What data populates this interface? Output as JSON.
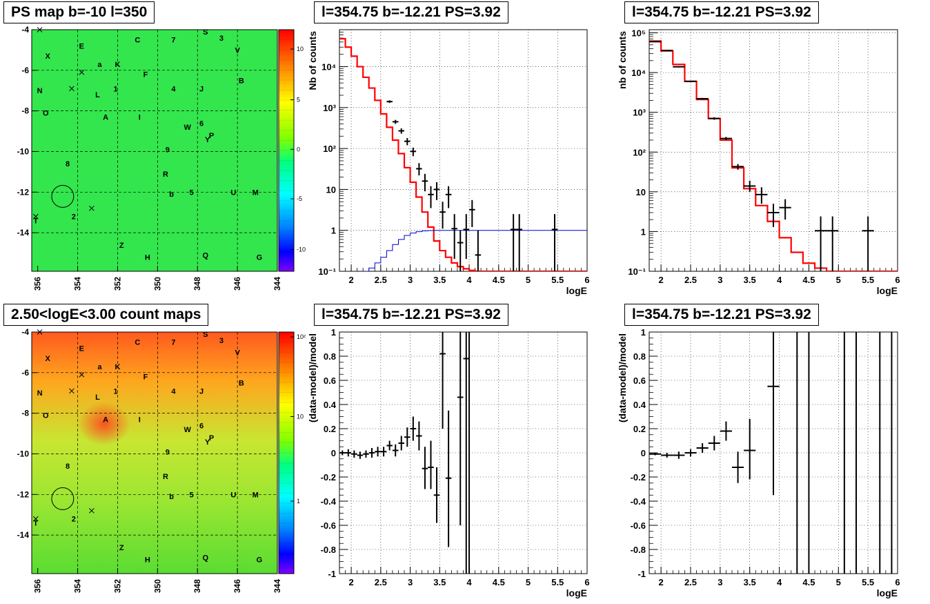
{
  "titles": {
    "map_top": "PS map b=-10 l=350",
    "map_bottom": "2.50<logE<3.00 count maps",
    "spec_left": "l=354.75 b=-12.21 PS=3.92",
    "spec_right": "l=354.75 b=-12.21 PS=3.92",
    "res_left": "l=354.75 b=-12.21 PS=3.92",
    "res_right": "l=354.75 b=-12.21 PS=3.92"
  },
  "colors": {
    "model_line": "#ff0000",
    "background_line": "#0000cc",
    "data_points": "#000000",
    "map_top_fill": "#33e64d",
    "map_bottom_gradient": [
      "#ff5a1e",
      "#ffa51e",
      "#c8e632",
      "#9be632",
      "#5adc32"
    ]
  },
  "source_labels": [
    {
      "text": "S",
      "l": 347.6,
      "b": -4.1
    },
    {
      "text": "3",
      "l": 346.8,
      "b": -4.4
    },
    {
      "text": "C",
      "l": 351.0,
      "b": -4.5
    },
    {
      "text": "7",
      "l": 349.2,
      "b": -4.5
    },
    {
      "text": "E",
      "l": 353.8,
      "b": -4.8
    },
    {
      "text": "V",
      "l": 346.0,
      "b": -5.0
    },
    {
      "text": "X",
      "l": 355.5,
      "b": -5.3
    },
    {
      "text": "a",
      "l": 352.9,
      "b": -5.7
    },
    {
      "text": "K",
      "l": 352.0,
      "b": -5.7
    },
    {
      "text": "F",
      "l": 350.6,
      "b": -6.2
    },
    {
      "text": "B",
      "l": 345.8,
      "b": -6.5
    },
    {
      "text": "N",
      "l": 355.9,
      "b": -7.0
    },
    {
      "text": "1",
      "l": 352.1,
      "b": -6.9
    },
    {
      "text": "4",
      "l": 349.2,
      "b": -6.9
    },
    {
      "text": "J",
      "l": 347.8,
      "b": -6.9
    },
    {
      "text": "L",
      "l": 353.0,
      "b": -7.2
    },
    {
      "text": "O",
      "l": 355.6,
      "b": -8.1
    },
    {
      "text": "A",
      "l": 352.6,
      "b": -8.3
    },
    {
      "text": "I",
      "l": 350.9,
      "b": -8.3
    },
    {
      "text": "6",
      "l": 347.8,
      "b": -8.6
    },
    {
      "text": "W",
      "l": 348.5,
      "b": -8.8
    },
    {
      "text": "P",
      "l": 347.3,
      "b": -9.2
    },
    {
      "text": "Y",
      "l": 347.5,
      "b": -9.4
    },
    {
      "text": "9",
      "l": 349.5,
      "b": -9.9
    },
    {
      "text": "8",
      "l": 354.5,
      "b": -10.6
    },
    {
      "text": "R",
      "l": 349.6,
      "b": -11.1
    },
    {
      "text": "5",
      "l": 348.3,
      "b": -12.0
    },
    {
      "text": "U",
      "l": 346.2,
      "b": -12.0
    },
    {
      "text": "M",
      "l": 345.1,
      "b": -12.0
    },
    {
      "text": "b",
      "l": 349.3,
      "b": -12.1
    },
    {
      "text": "2",
      "l": 354.2,
      "b": -13.2
    },
    {
      "text": "T",
      "l": 356.1,
      "b": -13.4
    },
    {
      "text": "Z",
      "l": 351.8,
      "b": -14.6
    },
    {
      "text": "Q",
      "l": 347.6,
      "b": -15.1
    },
    {
      "text": "H",
      "l": 350.5,
      "b": -15.2
    },
    {
      "text": "G",
      "l": 344.9,
      "b": -15.2
    }
  ],
  "cross_markers": [
    {
      "l": 355.9,
      "b": -4.0
    },
    {
      "l": 353.8,
      "b": -6.1
    },
    {
      "l": 354.3,
      "b": -6.9
    },
    {
      "l": 353.3,
      "b": -12.8
    },
    {
      "l": 356.1,
      "b": -13.2
    }
  ],
  "circle_marker": {
    "l": 354.75,
    "b": -12.21,
    "radius_deg": 0.5
  },
  "chart_data": [
    {
      "type": "heatmap",
      "title": "PS map b=-10 l=350",
      "xlabel": "",
      "ylabel": "",
      "xlim": [
        356.3,
        344
      ],
      "ylim": [
        -15.9,
        -4
      ],
      "x_ticks": [
        "356",
        "354",
        "352",
        "350",
        "348",
        "346",
        "344"
      ],
      "y_ticks": [
        "-4",
        "-6",
        "-8",
        "-10",
        "-12",
        "-14"
      ],
      "colorbar": {
        "range": [
          -12,
          12
        ],
        "ticks": [
          "10",
          "5",
          "0",
          "-5",
          "-10"
        ]
      },
      "grid": true
    },
    {
      "type": "heatmap",
      "title": "2.50<logE<3.00 count maps",
      "xlabel": "",
      "ylabel": "",
      "xlim": [
        356.3,
        344
      ],
      "ylim": [
        -15.9,
        -4
      ],
      "x_ticks": [
        "356",
        "354",
        "352",
        "350",
        "348",
        "346",
        "344"
      ],
      "y_ticks": [
        "-4",
        "-6",
        "-8",
        "-10",
        "-12",
        "-14"
      ],
      "colorbar": {
        "scale": "log",
        "ticks": [
          "10²",
          "10",
          "1"
        ]
      },
      "grid": true
    },
    {
      "type": "line",
      "title": "l=354.75 b=-12.21 PS=3.92",
      "xlabel": "logE",
      "ylabel": "Nb of counts",
      "xlim": [
        1.8,
        6
      ],
      "ylim": [
        0.1,
        80000
      ],
      "yscale": "log",
      "x_ticks": [
        "2",
        "2.5",
        "3",
        "3.5",
        "4",
        "4.5",
        "5",
        "5.5",
        "6"
      ],
      "y_ticks": [
        "10⁻¹",
        "1",
        "10",
        "10²",
        "10³",
        "10⁴"
      ],
      "grid": true,
      "series": [
        {
          "style": "step",
          "color": "#ff0000",
          "bin_width": 0.1,
          "x": [
            1.8,
            1.9,
            2.0,
            2.1,
            2.2,
            2.3,
            2.4,
            2.5,
            2.6,
            2.7,
            2.8,
            2.9,
            3.0,
            3.1,
            3.2,
            3.3,
            3.4,
            3.5,
            3.6,
            3.7,
            3.8,
            3.9,
            4.0,
            4.1,
            4.2,
            4.3,
            4.4,
            4.5
          ],
          "y": [
            48000,
            30000,
            18000,
            10000,
            5500,
            3000,
            1500,
            700,
            330,
            160,
            75,
            34,
            15,
            6.5,
            2.8,
            1.2,
            0.55,
            0.32,
            0.22,
            0.16,
            0.13,
            0.115,
            0.105,
            0.1,
            0.1,
            0.1,
            0.1,
            0.1
          ]
        },
        {
          "style": "step",
          "color": "#0000cc",
          "bin_width": 0.1,
          "x": [
            2.2,
            2.3,
            2.4,
            2.5,
            2.6,
            2.7,
            2.8,
            2.9,
            3.0,
            3.1,
            3.2,
            3.3,
            3.4,
            3.5,
            3.6,
            3.7,
            3.8,
            3.9,
            4.0,
            4.5,
            5.0,
            5.5,
            6.0
          ],
          "y": [
            0.1,
            0.12,
            0.16,
            0.22,
            0.32,
            0.45,
            0.6,
            0.75,
            0.86,
            0.93,
            0.97,
            0.99,
            1.0,
            1.0,
            1.0,
            1.0,
            1.0,
            1.0,
            1.0,
            1.0,
            1.0,
            1.0,
            1.0
          ]
        },
        {
          "style": "points",
          "x": [
            2.65,
            2.75,
            2.85,
            2.95,
            3.05,
            3.15,
            3.25,
            3.35,
            3.45,
            3.55,
            3.65,
            3.75,
            3.85,
            3.95,
            4.05,
            4.15,
            4.75,
            4.85,
            5.45
          ],
          "y": [
            1400,
            450,
            270,
            150,
            85,
            32,
            16,
            7.5,
            10,
            2.8,
            7.5,
            1.1,
            0.5,
            1.05,
            3.2,
            0.25,
            1.05,
            1.05,
            1.05
          ],
          "xerr": 0.05,
          "ylow": [
            1300,
            400,
            230,
            120,
            65,
            22,
            9,
            3.5,
            5.5,
            1.1,
            3.5,
            0.2,
            0.1,
            0.2,
            1.2,
            0.1,
            0.1,
            0.1,
            0.1
          ],
          "yhigh": [
            1500,
            500,
            310,
            180,
            105,
            44,
            24,
            12,
            15,
            5,
            12,
            2.5,
            1,
            2.5,
            5.5,
            1,
            2.5,
            2.5,
            2.5
          ]
        }
      ]
    },
    {
      "type": "line",
      "title": "l=354.75 b=-12.21 PS=3.92",
      "xlabel": "logE",
      "ylabel": "nb of counts",
      "xlim": [
        1.8,
        6
      ],
      "ylim": [
        0.1,
        120000
      ],
      "yscale": "log",
      "x_ticks": [
        "2",
        "2.5",
        "3",
        "3.5",
        "4",
        "4.5",
        "5",
        "5.5",
        "6"
      ],
      "y_ticks": [
        "10⁻¹",
        "1",
        "10",
        "10²",
        "10³",
        "10⁴",
        "10⁵"
      ],
      "grid": true,
      "series": [
        {
          "style": "step",
          "color": "#ff0000",
          "bin_width": 0.2,
          "x": [
            1.8,
            2.0,
            2.2,
            2.4,
            2.6,
            2.8,
            3.0,
            3.2,
            3.4,
            3.6,
            3.8,
            4.0,
            4.2,
            4.4,
            4.6,
            4.8,
            5.0
          ],
          "y": [
            62000,
            35000,
            16000,
            6000,
            2100,
            700,
            200,
            40,
            12,
            4.5,
            1.8,
            0.7,
            0.3,
            0.16,
            0.12,
            0.1,
            0.1
          ]
        },
        {
          "style": "points",
          "x": [
            1.9,
            2.1,
            2.3,
            2.5,
            2.7,
            2.9,
            3.1,
            3.3,
            3.5,
            3.7,
            3.9,
            4.1,
            4.7,
            4.9,
            5.5
          ],
          "y": [
            60000,
            36000,
            14000,
            6000,
            2200,
            700,
            220,
            43,
            14,
            8.5,
            3,
            4,
            1.05,
            1.05,
            1.05
          ],
          "xerr": 0.1,
          "ylow": [
            58000,
            35000,
            13500,
            5800,
            2100,
            650,
            200,
            36,
            10,
            5,
            1.3,
            2,
            0.1,
            0.1,
            0.1
          ],
          "yhigh": [
            62000,
            37000,
            14500,
            6200,
            2300,
            750,
            240,
            50,
            19,
            13,
            5,
            6.5,
            2.4,
            2.4,
            2.4
          ]
        }
      ]
    },
    {
      "type": "scatter",
      "title": "l=354.75 b=-12.21 PS=3.92",
      "xlabel": "logE",
      "ylabel": "(data-model)/model",
      "xlim": [
        1.8,
        6
      ],
      "ylim": [
        -1,
        1
      ],
      "x_ticks": [
        "2",
        "2.5",
        "3",
        "3.5",
        "4",
        "4.5",
        "5",
        "5.5",
        "6"
      ],
      "y_ticks": [
        "-1",
        "-0.8",
        "-0.6",
        "-0.4",
        "-0.2",
        "0",
        "0.2",
        "0.4",
        "0.6",
        "0.8",
        "1"
      ],
      "grid": true,
      "series": [
        {
          "style": "points",
          "x": [
            1.85,
            1.95,
            2.05,
            2.15,
            2.25,
            2.35,
            2.45,
            2.55,
            2.65,
            2.75,
            2.85,
            2.95,
            3.05,
            3.15,
            3.25,
            3.35,
            3.45,
            3.55,
            3.65,
            3.85,
            3.95
          ],
          "y": [
            0.0,
            0.0,
            -0.01,
            -0.02,
            -0.01,
            0.0,
            0.01,
            0.01,
            0.06,
            0.02,
            0.08,
            0.13,
            0.2,
            0.14,
            -0.13,
            -0.12,
            -0.35,
            0.82,
            -0.21,
            0.46,
            0.78
          ],
          "xerr": 0.05,
          "ylow": [
            -0.02,
            -0.03,
            -0.04,
            -0.05,
            -0.04,
            -0.04,
            -0.03,
            -0.03,
            0.02,
            -0.03,
            0.02,
            0.05,
            0.1,
            0.02,
            -0.3,
            -0.3,
            -0.58,
            0.2,
            -0.78,
            -0.6,
            -1
          ],
          "yhigh": [
            0.02,
            0.03,
            0.02,
            0.01,
            0.02,
            0.04,
            0.05,
            0.05,
            0.1,
            0.07,
            0.14,
            0.21,
            0.3,
            0.26,
            0.05,
            0.1,
            -0.12,
            1.0,
            0.35,
            1.0,
            1.0
          ]
        },
        {
          "style": "errorbar-only",
          "x": [
            4.0
          ],
          "ylow": [
            -1
          ],
          "yhigh": [
            1
          ]
        }
      ]
    },
    {
      "type": "scatter",
      "title": "l=354.75 b=-12.21 PS=3.92",
      "xlabel": "logE",
      "ylabel": "(data-model)/model",
      "xlim": [
        1.8,
        6
      ],
      "ylim": [
        -1,
        1
      ],
      "x_ticks": [
        "2",
        "2.5",
        "3",
        "3.5",
        "4",
        "4.5",
        "5",
        "5.5",
        "6"
      ],
      "y_ticks": [
        "-1",
        "-0.8",
        "-0.6",
        "-0.4",
        "-0.2",
        "0",
        "0.2",
        "0.4",
        "0.6",
        "0.8",
        "1"
      ],
      "grid": true,
      "series": [
        {
          "style": "points",
          "x": [
            1.9,
            2.1,
            2.3,
            2.5,
            2.7,
            2.9,
            3.1,
            3.3,
            3.5,
            3.9
          ],
          "y": [
            -0.01,
            -0.02,
            -0.02,
            0.0,
            0.04,
            0.08,
            0.18,
            -0.12,
            0.02,
            0.55
          ],
          "xerr": 0.1,
          "ylow": [
            -0.02,
            -0.04,
            -0.05,
            -0.03,
            0.0,
            0.02,
            0.1,
            -0.25,
            -0.22,
            -0.35
          ],
          "yhigh": [
            0.0,
            0.0,
            0.01,
            0.03,
            0.08,
            0.14,
            0.26,
            0.01,
            0.28,
            1.0
          ]
        },
        {
          "style": "errorbar-only",
          "x": [
            4.3,
            4.5,
            5.1,
            5.3,
            5.7,
            5.9
          ],
          "ylow": [
            -1,
            -1,
            -1,
            -1,
            -1,
            -1
          ],
          "yhigh": [
            1,
            1,
            1,
            1,
            1,
            1
          ]
        }
      ]
    }
  ]
}
